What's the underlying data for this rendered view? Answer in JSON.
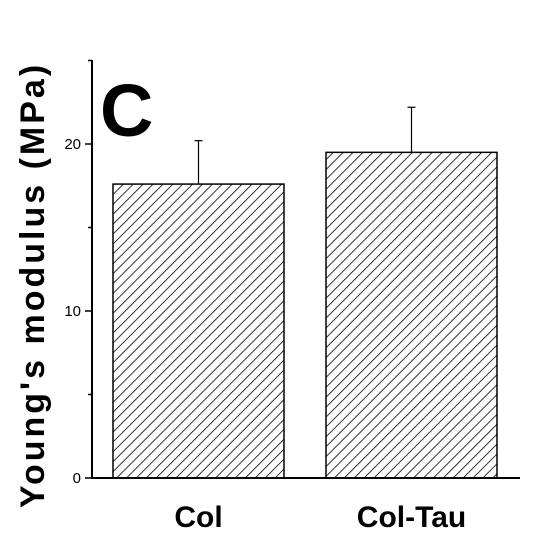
{
  "panel_label": "C",
  "chart_data": {
    "type": "bar",
    "categories": [
      "Col",
      "Col-Tau"
    ],
    "values": [
      17.6,
      19.5
    ],
    "errors": [
      2.6,
      2.7
    ],
    "ylabel": "Young's modulus (MPa)",
    "xlabel": "",
    "ylim": [
      0,
      25
    ],
    "yticks": [
      0,
      10,
      20
    ],
    "fill_pattern": "diagonal-hatch",
    "grid": false
  }
}
